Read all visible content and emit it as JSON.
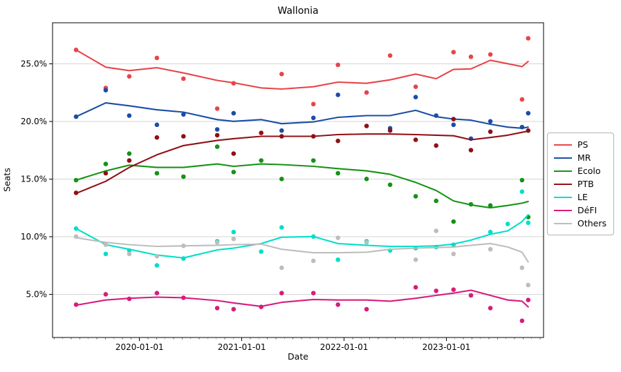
{
  "figure": {
    "title": "Wallonia",
    "xlabel": "Date",
    "ylabel": "Seats"
  },
  "chart_data": {
    "type": "scatter",
    "title": "Wallonia",
    "xlabel": "Date",
    "ylabel": "Seats",
    "x_unit": "decimal_year",
    "xlim": [
      2019.15,
      2023.95
    ],
    "ylim": [
      1.25,
      28.55
    ],
    "grid": "horizontal-major",
    "grid_color": "#d4d4d4",
    "spine_color": "#000000",
    "legend_position": "right-outside",
    "x_major_ticks": [
      {
        "value": 2020.0,
        "label": "2020-01-01"
      },
      {
        "value": 2021.0,
        "label": "2021-01-01"
      },
      {
        "value": 2022.0,
        "label": "2022-01-01"
      },
      {
        "value": 2023.0,
        "label": "2023-01-01"
      }
    ],
    "x_minor_ticks": "monthly",
    "y_ticks": [
      {
        "value": 5.0,
        "label": "5.0%"
      },
      {
        "value": 10.0,
        "label": "10.0%"
      },
      {
        "value": 15.0,
        "label": "15.0%"
      },
      {
        "value": 20.0,
        "label": "20.0%"
      },
      {
        "value": 25.0,
        "label": "25.0%"
      }
    ],
    "dates": [
      2019.38,
      2019.67,
      2019.9,
      2020.17,
      2020.43,
      2020.76,
      2020.92,
      2021.19,
      2021.39,
      2021.7,
      2021.94,
      2022.22,
      2022.45,
      2022.7,
      2022.9,
      2023.07,
      2023.24,
      2023.43,
      2023.6,
      2023.74,
      2023.8
    ],
    "series": [
      {
        "name": "PS",
        "key": "ps",
        "color": "#e8444a",
        "scatter": [
          26.2,
          22.9,
          23.9,
          25.5,
          23.7,
          21.1,
          23.3,
          null,
          24.1,
          21.5,
          24.9,
          22.5,
          25.7,
          23.0,
          null,
          26.0,
          25.6,
          25.8,
          null,
          21.9,
          27.2
        ],
        "trend": [
          26.2,
          24.7,
          24.4,
          24.65,
          24.2,
          23.55,
          23.35,
          22.9,
          22.8,
          23.0,
          23.4,
          23.3,
          23.6,
          24.1,
          23.7,
          24.5,
          24.55,
          25.3,
          25.0,
          24.75,
          25.2
        ]
      },
      {
        "name": "MR",
        "key": "mr",
        "color": "#1a4da6",
        "scatter": [
          20.4,
          22.7,
          20.5,
          19.7,
          20.6,
          19.3,
          20.7,
          null,
          19.2,
          20.3,
          22.3,
          null,
          19.4,
          22.1,
          20.5,
          19.7,
          18.5,
          20.0,
          null,
          19.5,
          20.7
        ],
        "trend": [
          20.4,
          21.6,
          21.35,
          21.0,
          20.8,
          20.15,
          20.0,
          20.15,
          19.8,
          19.95,
          20.35,
          20.5,
          20.5,
          20.95,
          20.4,
          20.2,
          20.1,
          19.75,
          19.5,
          19.4,
          19.5
        ]
      },
      {
        "name": "Ecolo",
        "key": "ecolo",
        "color": "#149314",
        "scatter": [
          14.9,
          16.3,
          17.2,
          15.5,
          15.2,
          17.8,
          15.6,
          16.6,
          15.0,
          16.6,
          15.5,
          15.0,
          14.5,
          13.5,
          13.1,
          11.3,
          12.8,
          12.7,
          null,
          14.9,
          11.7
        ],
        "trend": [
          14.9,
          15.7,
          16.2,
          16.0,
          16.0,
          16.3,
          16.1,
          16.3,
          16.25,
          16.1,
          15.9,
          15.7,
          15.4,
          14.7,
          14.0,
          13.1,
          12.75,
          12.5,
          12.7,
          12.9,
          13.05
        ]
      },
      {
        "name": "PTB",
        "key": "ptb",
        "color": "#8f1016",
        "scatter": [
          13.8,
          15.5,
          16.6,
          18.6,
          18.7,
          18.8,
          17.2,
          19.0,
          18.7,
          18.7,
          18.3,
          19.6,
          19.2,
          18.4,
          17.9,
          20.2,
          17.5,
          19.1,
          null,
          null,
          19.2
        ],
        "trend": [
          13.75,
          14.8,
          16.0,
          17.1,
          17.9,
          18.35,
          18.5,
          18.7,
          18.7,
          18.7,
          18.85,
          18.9,
          18.9,
          18.85,
          18.8,
          18.75,
          18.4,
          18.6,
          18.8,
          19.05,
          19.15
        ]
      },
      {
        "name": "LE",
        "key": "le",
        "color": "#00dfc9",
        "scatter": [
          10.7,
          8.5,
          8.8,
          7.5,
          8.1,
          9.6,
          10.4,
          8.7,
          10.8,
          10.0,
          8.0,
          9.6,
          8.8,
          9.0,
          9.1,
          9.3,
          null,
          10.4,
          11.1,
          13.9,
          11.2
        ],
        "trend": [
          10.7,
          9.3,
          8.9,
          8.4,
          8.15,
          8.85,
          9.0,
          9.4,
          9.95,
          10.0,
          9.4,
          9.25,
          9.15,
          9.15,
          9.2,
          9.35,
          9.7,
          10.2,
          10.5,
          11.3,
          11.9
        ]
      },
      {
        "name": "DéFI",
        "key": "defi",
        "color": "#d81b7e",
        "scatter": [
          4.1,
          5.0,
          4.6,
          5.1,
          4.7,
          3.8,
          3.7,
          3.9,
          5.1,
          5.1,
          4.1,
          3.7,
          null,
          5.6,
          5.3,
          5.4,
          4.9,
          3.8,
          null,
          2.7,
          4.5
        ],
        "trend": [
          4.05,
          4.5,
          4.65,
          4.75,
          4.7,
          4.45,
          4.25,
          3.95,
          4.3,
          4.55,
          4.5,
          4.5,
          4.4,
          4.65,
          4.9,
          5.1,
          5.35,
          4.9,
          4.5,
          4.4,
          3.9
        ]
      },
      {
        "name": "Others",
        "key": "others",
        "color": "#bdbdbd",
        "scatter": [
          10.0,
          9.3,
          8.5,
          8.3,
          9.2,
          9.5,
          9.8,
          null,
          7.3,
          7.9,
          9.9,
          9.5,
          null,
          8.0,
          10.5,
          8.5,
          null,
          8.9,
          null,
          7.3,
          5.8
        ],
        "trend": [
          9.9,
          9.5,
          9.3,
          9.15,
          9.2,
          9.25,
          9.3,
          9.35,
          8.9,
          8.6,
          8.6,
          8.65,
          8.9,
          9.0,
          9.05,
          9.1,
          9.25,
          9.4,
          9.1,
          8.65,
          7.8
        ]
      }
    ]
  }
}
